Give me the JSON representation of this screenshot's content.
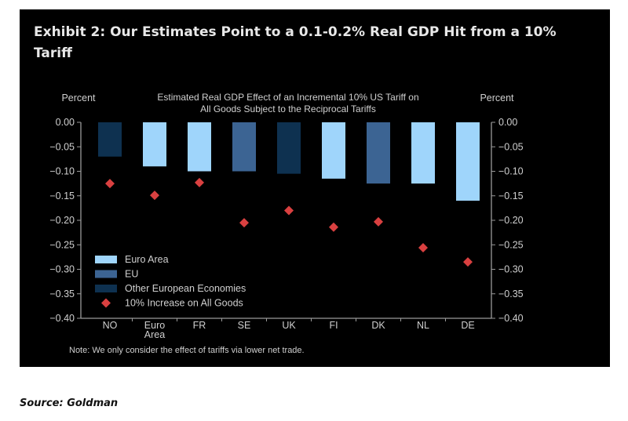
{
  "title": "Exhibit 2: Our Estimates Point to a 0.1-0.2% Real GDP Hit from a 10% Tariff",
  "source": "Source: Goldman",
  "chart_data": {
    "type": "bar",
    "title_lines": [
      "Estimated Real GDP Effect of an Incremental 10% US Tariff on",
      "All Goods Subject to the Reciprocal Tariffs"
    ],
    "ylabel_left": "Percent",
    "ylabel_right": "Percent",
    "ylim": [
      -0.4,
      0.0
    ],
    "yticks": [
      "0.00",
      "-0.05",
      "-0.10",
      "-0.15",
      "-0.20",
      "-0.25",
      "-0.30",
      "-0.35",
      "-0.40"
    ],
    "categories": [
      "NO",
      "Euro Area",
      "FR",
      "SE",
      "UK",
      "FI",
      "DK",
      "NL",
      "DE"
    ],
    "bar_groups": [
      "Other European Economies",
      "Euro Area",
      "Euro Area",
      "EU",
      "Other European Economies",
      "Euro Area",
      "EU",
      "Euro Area",
      "Euro Area"
    ],
    "values": [
      -0.07,
      -0.09,
      -0.1,
      -0.1,
      -0.105,
      -0.115,
      -0.125,
      -0.125,
      -0.16
    ],
    "series": [
      {
        "name": "10% Increase on All Goods",
        "type": "scatter",
        "marker": "diamond",
        "color": "#d94040",
        "values": [
          -0.125,
          -0.149,
          -0.123,
          -0.205,
          -0.18,
          -0.214,
          -0.203,
          -0.256,
          -0.285
        ]
      }
    ],
    "legend": {
      "placement": "bottom-left",
      "items": [
        {
          "name": "Euro Area",
          "color": "#9fd5fb"
        },
        {
          "name": "EU",
          "color": "#3c6493"
        },
        {
          "name": "Other European Economies",
          "color": "#0e3150"
        },
        {
          "name": "10% Increase on All Goods",
          "color": "#d94040"
        }
      ]
    },
    "note": "Note: We only consider the effect of tariffs via lower net trade.",
    "grid": false
  }
}
